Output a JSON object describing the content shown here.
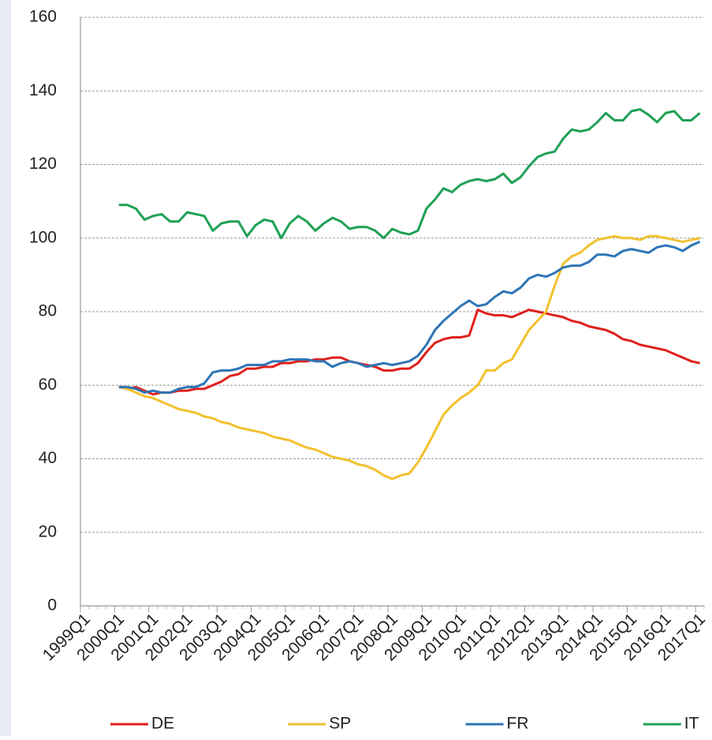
{
  "chart_data": {
    "type": "line",
    "categories": [
      "1999Q1",
      null,
      null,
      null,
      "2000Q1",
      null,
      null,
      null,
      "2001Q1",
      null,
      null,
      null,
      "2002Q1",
      null,
      null,
      null,
      "2003Q1",
      null,
      null,
      null,
      "2004Q1",
      null,
      null,
      null,
      "2005Q1",
      null,
      null,
      null,
      "2006Q1",
      null,
      null,
      null,
      "2007Q1",
      null,
      null,
      null,
      "2008Q1",
      null,
      null,
      null,
      "2009Q1",
      null,
      null,
      null,
      "2010Q1",
      null,
      null,
      null,
      "2011Q1",
      null,
      null,
      null,
      "2012Q1",
      null,
      null,
      null,
      "2013Q1",
      null,
      null,
      null,
      "2014Q1",
      null,
      null,
      null,
      "2015Q1",
      null,
      null,
      null,
      "2016Q1",
      null,
      null,
      null,
      "2017Q1"
    ],
    "series": [
      {
        "name": "DE",
        "color": "#e0201b",
        "values": [
          null,
          null,
          null,
          null,
          59.5,
          59,
          59.5,
          58.5,
          57.5,
          58,
          58,
          58.5,
          58.5,
          59,
          59,
          60,
          61,
          62.5,
          63,
          64.5,
          64.5,
          65,
          65,
          66,
          66,
          66.5,
          66.5,
          67,
          67,
          67.5,
          67.5,
          66.5,
          66,
          65.5,
          65,
          64,
          64,
          64.5,
          64.5,
          66,
          69,
          71.5,
          72.5,
          73,
          73,
          73.5,
          80.5,
          79.5,
          79,
          79,
          78.5,
          79.5,
          80.5,
          80,
          79.5,
          79,
          78.5,
          77.5,
          77,
          76,
          75.5,
          75,
          74,
          72.5,
          72,
          71,
          70.5,
          70,
          69.5,
          68.5,
          67.5,
          66.5,
          66
        ]
      },
      {
        "name": "SP",
        "color": "#f2c12e",
        "values": [
          null,
          null,
          null,
          null,
          59.5,
          59,
          58,
          57,
          56.5,
          55.5,
          54.5,
          53.5,
          53,
          52.5,
          51.5,
          51,
          50,
          49.5,
          48.5,
          48,
          47.5,
          47,
          46,
          45.5,
          45,
          44,
          43,
          42.5,
          41.5,
          40.5,
          40,
          39.5,
          38.5,
          38,
          37,
          35.5,
          34.5,
          35.5,
          36,
          39,
          43,
          47.5,
          52,
          54.5,
          56.5,
          58,
          60,
          64,
          64,
          66,
          67,
          71,
          75,
          77.5,
          80,
          87,
          93,
          95,
          96,
          98,
          99.5,
          100,
          100.5,
          100,
          100,
          99.5,
          100.5,
          100.5,
          100,
          99.5,
          99,
          99.5,
          100
        ]
      },
      {
        "name": "FR",
        "color": "#2e75b6",
        "values": [
          null,
          null,
          null,
          null,
          59.5,
          59.5,
          59,
          58,
          58.5,
          58,
          58,
          59,
          59.5,
          59.5,
          60.5,
          63.5,
          64,
          64,
          64.5,
          65.5,
          65.5,
          65.5,
          66.5,
          66.5,
          67,
          67,
          67,
          66.5,
          66.5,
          65,
          66,
          66.5,
          66,
          65,
          65.5,
          66,
          65.5,
          66,
          66.5,
          68,
          71,
          75,
          77.5,
          79.5,
          81.5,
          83,
          81.5,
          82,
          84,
          85.5,
          85,
          86.5,
          89,
          90,
          89.5,
          90.5,
          92,
          92.5,
          92.5,
          93.5,
          95.5,
          95.5,
          95,
          96.5,
          97,
          96.5,
          96,
          97.5,
          98,
          97.5,
          96.5,
          98,
          99
        ]
      },
      {
        "name": "IT",
        "color": "#1fa055",
        "values": [
          null,
          null,
          null,
          null,
          109,
          109,
          108,
          105,
          106,
          106.5,
          104.5,
          104.5,
          107,
          106.5,
          106,
          102,
          104,
          104.5,
          104.5,
          100.5,
          103.5,
          105,
          104.5,
          100,
          104,
          106,
          104.5,
          102,
          104,
          105.5,
          104.5,
          102.5,
          103,
          103,
          102,
          100,
          102.5,
          101.5,
          101,
          102,
          108,
          110.5,
          113.5,
          112.5,
          114.5,
          115.5,
          116,
          115.5,
          116,
          117.5,
          115,
          116.5,
          119.5,
          122,
          123,
          123.5,
          127,
          129.5,
          129,
          129.5,
          131.5,
          134,
          132,
          132,
          134.5,
          135,
          133.5,
          131.5,
          134,
          134.5,
          132,
          132,
          134
        ]
      }
    ],
    "ylim": [
      0,
      160
    ],
    "yticks": [
      0,
      20,
      40,
      60,
      80,
      100,
      120,
      140,
      160
    ],
    "grid": true,
    "legend": "bottom"
  }
}
